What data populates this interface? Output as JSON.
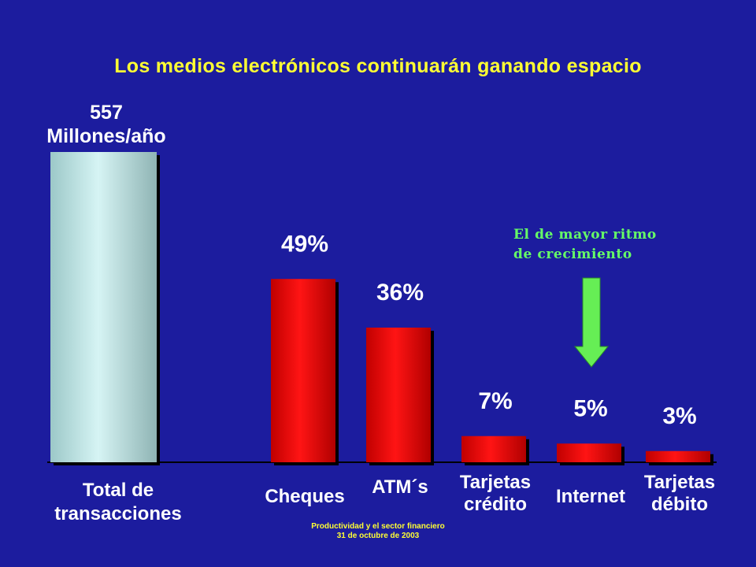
{
  "title": "Los medios electrónicos continuarán ganando espacio",
  "total": {
    "value_text": "557",
    "unit_text": "Millones/año",
    "label_line1": "Total de",
    "label_line2": "transacciones"
  },
  "annotation": {
    "line1": "El de mayor ritmo",
    "line2": "de crecimiento"
  },
  "footer": {
    "line1": "Productividad y el sector financiero",
    "line2": "31 de octubre de 2003"
  },
  "colors": {
    "background": "#1c1c9e",
    "title": "#ffff33",
    "total_bar": "#a6dada",
    "share_bars": "#ee0000",
    "annotation": "#66ff66",
    "arrow": "#66ee55"
  },
  "chart_data": {
    "type": "bar",
    "total": {
      "label": "Total de transacciones",
      "value": 557,
      "unit": "Millones/año"
    },
    "categories": [
      {
        "lines": [
          "Cheques"
        ],
        "label": "Cheques"
      },
      {
        "lines": [
          "ATM´s"
        ],
        "label": "ATM´s"
      },
      {
        "lines": [
          "Tarjetas",
          "crédito"
        ],
        "label": "Tarjetas crédito"
      },
      {
        "lines": [
          "Internet"
        ],
        "label": "Internet"
      },
      {
        "lines": [
          "Tarjetas",
          "débito"
        ],
        "label": "Tarjetas débito"
      }
    ],
    "values": [
      49,
      36,
      7,
      5,
      3
    ],
    "value_labels": [
      "49%",
      "36%",
      "7%",
      "5%",
      "3%"
    ],
    "highlight_category": "Internet",
    "grid": false,
    "legend": "none"
  }
}
